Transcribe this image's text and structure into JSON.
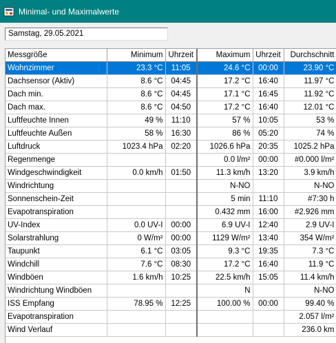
{
  "window": {
    "title": "Minimal- und Maximalwerte"
  },
  "date_field": {
    "value": "Samstag, 29.05.2021"
  },
  "columns": [
    "Messgröße",
    "Minimum",
    "Uhrzeit",
    "Maximum",
    "Uhrzeit",
    "Durchschnitt"
  ],
  "rows": [
    [
      "Wohnzimmer",
      "23.3 °C",
      "11:05",
      "24.6 °C",
      "00:00",
      "23.90 °C"
    ],
    [
      "Dachsensor (Aktiv)",
      "8.6 °C",
      "04:45",
      "17.2 °C",
      "16:40",
      "11.97 °C"
    ],
    [
      "Dach min.",
      "8.6 °C",
      "04:45",
      "17.1 °C",
      "16:45",
      "11.92 °C"
    ],
    [
      "Dach max.",
      "8.6 °C",
      "04:50",
      "17.2 °C",
      "16:40",
      "12.01 °C"
    ],
    [
      "Luftfeuchte Innen",
      "49 %",
      "11:10",
      "57 %",
      "10:05",
      "53 %"
    ],
    [
      "Luftfeuchte Außen",
      "58 %",
      "16:30",
      "86 %",
      "05:20",
      "74 %"
    ],
    [
      "Luftdruck",
      "1023.4 hPa",
      "02:20",
      "1026.6 hPa",
      "20:35",
      "1025.2 hPa"
    ],
    [
      "Regenmenge",
      "",
      "",
      "0.0 l/m²",
      "00:00",
      "#0.000 l/m²"
    ],
    [
      "Windgeschwindigkeit",
      "0.0 km/h",
      "01:50",
      "11.3 km/h",
      "13:20",
      "3.9 km/h"
    ],
    [
      "Windrichtung",
      "",
      "",
      "N-NO",
      "",
      "N-NO"
    ],
    [
      "Sonnenschein-Zeit",
      "",
      "",
      "5 min",
      "11:10",
      "#7:30 h"
    ],
    [
      "Evapotranspiration",
      "",
      "",
      "0.432 mm",
      "16:00",
      "#2.926 mm"
    ],
    [
      "UV-Index",
      "0.0 UV-I",
      "00:00",
      "6.9 UV-I",
      "12:40",
      "2.9 UV-I"
    ],
    [
      "Solarstrahlung",
      "0 W/m²",
      "00:00",
      "1129 W/m²",
      "13:40",
      "354 W/m²"
    ],
    [
      "Taupunkt",
      "6.1 °C",
      "03:05",
      "9.3 °C",
      "19:35",
      "7.3 °C"
    ],
    [
      "Windchill",
      "7.6 °C",
      "08:30",
      "17.2 °C",
      "16:40",
      "11.9 °C"
    ],
    [
      "Windböen",
      "1.6 km/h",
      "10:25",
      "22.5 km/h",
      "15:05",
      "11.4 km/h"
    ],
    [
      "Windrichtung Windböen",
      "",
      "",
      "N",
      "",
      "N-NO"
    ],
    [
      "ISS Empfang",
      "78.95 %",
      "12:25",
      "100.00 %",
      "00:00",
      "99.40 %"
    ],
    [
      "Evapotranspiration",
      "",
      "",
      "",
      "",
      "2.057 l/m²"
    ],
    [
      "Wind Verlauf",
      "",
      "",
      "",
      "",
      "236.0 km"
    ]
  ],
  "selected_row": 0,
  "colors": {
    "titlebar": "#008080",
    "selection": "#0078d7"
  },
  "icons": {
    "app": "weather-station-icon"
  }
}
